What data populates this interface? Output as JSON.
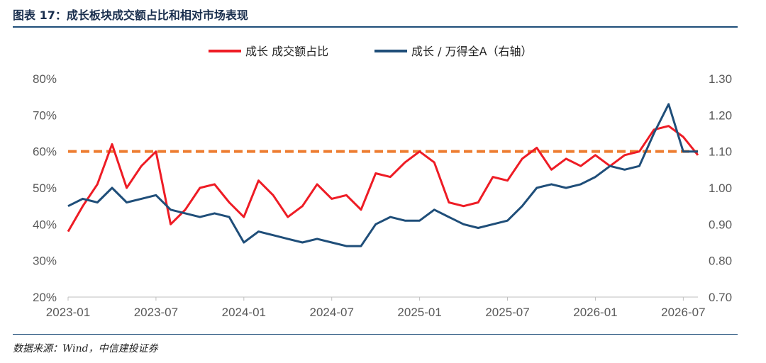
{
  "figure": {
    "title": "图表 17：成长板块成交额占比和相对市场表现",
    "source": "数据来源：Wind，中信建投证券"
  },
  "colors": {
    "red": "#ee1c25",
    "blue": "#1f4e79",
    "orange": "#ed7d31",
    "axis": "#bfbfbf"
  },
  "chart_data": {
    "type": "line",
    "title": "",
    "legend": {
      "position": "top",
      "entries": [
        "成长 成交额占比",
        "成长 / 万得全A（右轴）"
      ]
    },
    "x_ticks": [
      "2023-01",
      "2023-07",
      "2024-01",
      "2024-07",
      "2025-01",
      "2025-07",
      "2026-01",
      "2026-07"
    ],
    "y_left": {
      "ticks": [
        "20%",
        "30%",
        "40%",
        "50%",
        "60%",
        "70%",
        "80%"
      ],
      "range": [
        0.2,
        0.8
      ]
    },
    "y_right": {
      "ticks": [
        "0.70",
        "0.80",
        "0.90",
        "1.00",
        "1.10",
        "1.20",
        "1.30"
      ],
      "range": [
        0.7,
        1.3
      ]
    },
    "series": [
      {
        "name": "成长 成交额占比",
        "axis": "left",
        "x": [
          "2023-01",
          "2023-02",
          "2023-03",
          "2023-04",
          "2023-05",
          "2023-06",
          "2023-07",
          "2023-08",
          "2023-09",
          "2023-10",
          "2023-11",
          "2023-12",
          "2024-01",
          "2024-02",
          "2024-03",
          "2024-04",
          "2024-05",
          "2024-06",
          "2024-07",
          "2024-08",
          "2024-09",
          "2024-10",
          "2024-11",
          "2024-12",
          "2025-01",
          "2025-02",
          "2025-03",
          "2025-04",
          "2025-05",
          "2025-06",
          "2025-07",
          "2025-08",
          "2025-09",
          "2025-10",
          "2025-11",
          "2025-12",
          "2026-01",
          "2026-02",
          "2026-03",
          "2026-04",
          "2026-05",
          "2026-06",
          "2026-07",
          "2026-08"
        ],
        "y": [
          0.38,
          0.45,
          0.51,
          0.62,
          0.5,
          0.56,
          0.6,
          0.4,
          0.44,
          0.5,
          0.51,
          0.46,
          0.42,
          0.52,
          0.48,
          0.42,
          0.45,
          0.51,
          0.47,
          0.48,
          0.44,
          0.54,
          0.53,
          0.57,
          0.6,
          0.57,
          0.46,
          0.45,
          0.46,
          0.53,
          0.52,
          0.58,
          0.61,
          0.55,
          0.58,
          0.56,
          0.59,
          0.56,
          0.59,
          0.6,
          0.66,
          0.67,
          0.64,
          0.59
        ]
      },
      {
        "name": "成长 / 万得全A（右轴）",
        "axis": "right",
        "x": [
          "2023-01",
          "2023-02",
          "2023-03",
          "2023-04",
          "2023-05",
          "2023-06",
          "2023-07",
          "2023-08",
          "2023-09",
          "2023-10",
          "2023-11",
          "2023-12",
          "2024-01",
          "2024-02",
          "2024-03",
          "2024-04",
          "2024-05",
          "2024-06",
          "2024-07",
          "2024-08",
          "2024-09",
          "2024-10",
          "2024-11",
          "2024-12",
          "2025-01",
          "2025-02",
          "2025-03",
          "2025-04",
          "2025-05",
          "2025-06",
          "2025-07",
          "2025-08",
          "2025-09",
          "2025-10",
          "2025-11",
          "2025-12",
          "2026-01",
          "2026-02",
          "2026-03",
          "2026-04",
          "2026-05",
          "2026-06",
          "2026-07",
          "2026-08"
        ],
        "y": [
          0.95,
          0.97,
          0.96,
          1.0,
          0.96,
          0.97,
          0.98,
          0.94,
          0.93,
          0.92,
          0.93,
          0.92,
          0.85,
          0.88,
          0.87,
          0.86,
          0.85,
          0.86,
          0.85,
          0.84,
          0.84,
          0.9,
          0.92,
          0.91,
          0.91,
          0.94,
          0.92,
          0.9,
          0.89,
          0.9,
          0.91,
          0.95,
          1.0,
          1.01,
          1.0,
          1.01,
          1.03,
          1.06,
          1.05,
          1.06,
          1.15,
          1.23,
          1.1,
          1.1
        ]
      }
    ],
    "reference_line": {
      "value": 0.6,
      "axis": "left",
      "style": "dashed"
    }
  }
}
